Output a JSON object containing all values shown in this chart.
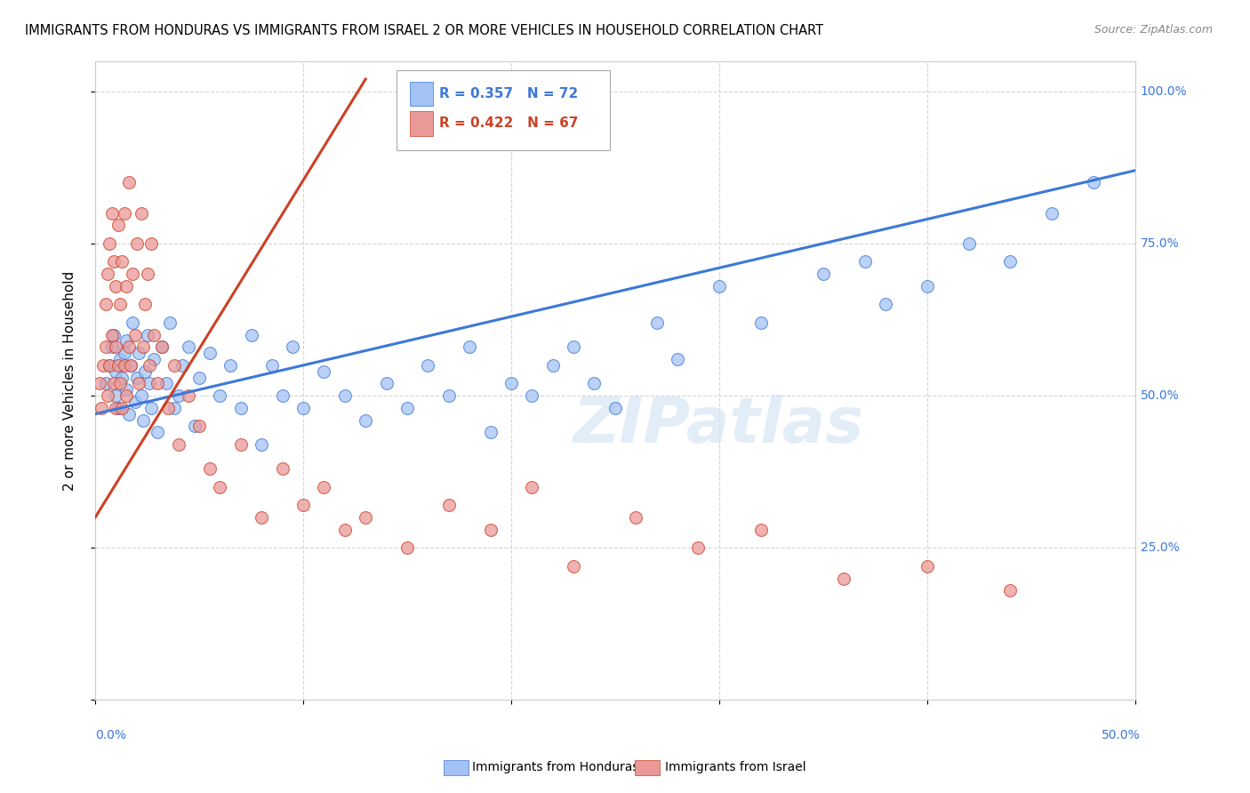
{
  "title": "IMMIGRANTS FROM HONDURAS VS IMMIGRANTS FROM ISRAEL 2 OR MORE VEHICLES IN HOUSEHOLD CORRELATION CHART",
  "source": "Source: ZipAtlas.com",
  "ylabel": "2 or more Vehicles in Household",
  "watermark": "ZIPatlas",
  "legend_blue": {
    "R": 0.357,
    "N": 72,
    "label": "Immigrants from Honduras"
  },
  "legend_pink": {
    "R": 0.422,
    "N": 67,
    "label": "Immigrants from Israel"
  },
  "blue_color": "#a4c2f4",
  "pink_color": "#ea9999",
  "blue_line_color": "#3c78d8",
  "pink_line_color": "#cc4125",
  "xlim": [
    0.0,
    0.5
  ],
  "ylim": [
    0.0,
    1.05
  ],
  "blue_scatter_x": [
    0.005,
    0.007,
    0.008,
    0.009,
    0.01,
    0.01,
    0.011,
    0.012,
    0.013,
    0.014,
    0.015,
    0.015,
    0.016,
    0.017,
    0.018,
    0.019,
    0.02,
    0.021,
    0.022,
    0.023,
    0.024,
    0.025,
    0.026,
    0.027,
    0.028,
    0.03,
    0.032,
    0.034,
    0.036,
    0.038,
    0.04,
    0.042,
    0.045,
    0.048,
    0.05,
    0.055,
    0.06,
    0.065,
    0.07,
    0.075,
    0.08,
    0.085,
    0.09,
    0.095,
    0.1,
    0.11,
    0.12,
    0.13,
    0.14,
    0.15,
    0.16,
    0.17,
    0.18,
    0.19,
    0.2,
    0.21,
    0.22,
    0.23,
    0.24,
    0.25,
    0.27,
    0.28,
    0.3,
    0.32,
    0.35,
    0.37,
    0.38,
    0.4,
    0.42,
    0.44,
    0.46,
    0.48
  ],
  "blue_scatter_y": [
    0.52,
    0.55,
    0.58,
    0.6,
    0.5,
    0.54,
    0.48,
    0.56,
    0.53,
    0.57,
    0.51,
    0.59,
    0.47,
    0.55,
    0.62,
    0.49,
    0.53,
    0.57,
    0.5,
    0.46,
    0.54,
    0.6,
    0.52,
    0.48,
    0.56,
    0.44,
    0.58,
    0.52,
    0.62,
    0.48,
    0.5,
    0.55,
    0.58,
    0.45,
    0.53,
    0.57,
    0.5,
    0.55,
    0.48,
    0.6,
    0.42,
    0.55,
    0.5,
    0.58,
    0.48,
    0.54,
    0.5,
    0.46,
    0.52,
    0.48,
    0.55,
    0.5,
    0.58,
    0.44,
    0.52,
    0.5,
    0.55,
    0.58,
    0.52,
    0.48,
    0.62,
    0.56,
    0.68,
    0.62,
    0.7,
    0.72,
    0.65,
    0.68,
    0.75,
    0.72,
    0.8,
    0.85
  ],
  "pink_scatter_x": [
    0.002,
    0.003,
    0.004,
    0.005,
    0.005,
    0.006,
    0.006,
    0.007,
    0.007,
    0.008,
    0.008,
    0.009,
    0.009,
    0.01,
    0.01,
    0.01,
    0.011,
    0.011,
    0.012,
    0.012,
    0.013,
    0.013,
    0.014,
    0.014,
    0.015,
    0.015,
    0.016,
    0.016,
    0.017,
    0.018,
    0.019,
    0.02,
    0.021,
    0.022,
    0.023,
    0.024,
    0.025,
    0.026,
    0.027,
    0.028,
    0.03,
    0.032,
    0.035,
    0.038,
    0.04,
    0.045,
    0.05,
    0.055,
    0.06,
    0.07,
    0.08,
    0.09,
    0.1,
    0.11,
    0.12,
    0.13,
    0.15,
    0.17,
    0.19,
    0.21,
    0.23,
    0.26,
    0.29,
    0.32,
    0.36,
    0.4,
    0.44
  ],
  "pink_scatter_y": [
    0.52,
    0.48,
    0.55,
    0.58,
    0.65,
    0.5,
    0.7,
    0.55,
    0.75,
    0.6,
    0.8,
    0.52,
    0.72,
    0.48,
    0.58,
    0.68,
    0.55,
    0.78,
    0.52,
    0.65,
    0.48,
    0.72,
    0.55,
    0.8,
    0.5,
    0.68,
    0.58,
    0.85,
    0.55,
    0.7,
    0.6,
    0.75,
    0.52,
    0.8,
    0.58,
    0.65,
    0.7,
    0.55,
    0.75,
    0.6,
    0.52,
    0.58,
    0.48,
    0.55,
    0.42,
    0.5,
    0.45,
    0.38,
    0.35,
    0.42,
    0.3,
    0.38,
    0.32,
    0.35,
    0.28,
    0.3,
    0.25,
    0.32,
    0.28,
    0.35,
    0.22,
    0.3,
    0.25,
    0.28,
    0.2,
    0.22,
    0.18
  ]
}
